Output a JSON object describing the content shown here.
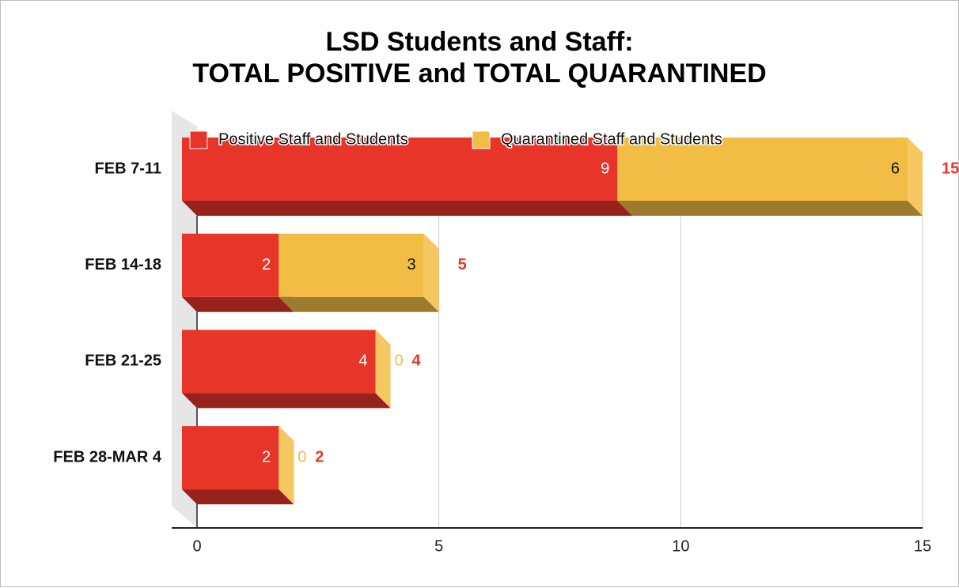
{
  "chart_data": {
    "type": "bar3d_stacked_horizontal",
    "title": "LSD Students and Staff:\nTOTAL POSITIVE and TOTAL QUARANTINED",
    "categories": [
      "FEB 7-11",
      "FEB 14-18",
      "FEB 21-25",
      "FEB 28-MAR 4"
    ],
    "series": [
      {
        "name": "Positive Staff and Students",
        "color": "#e8352a",
        "values": [
          9,
          2,
          4,
          2
        ]
      },
      {
        "name": "Quarantined Staff and Students",
        "color": "#f2bd44",
        "values": [
          6,
          3,
          0,
          0
        ]
      }
    ],
    "totals": [
      15,
      5,
      4,
      2
    ],
    "xlim": [
      0,
      15
    ],
    "xticks": [
      0,
      5,
      10,
      15
    ],
    "grid": true,
    "legend": "top"
  }
}
